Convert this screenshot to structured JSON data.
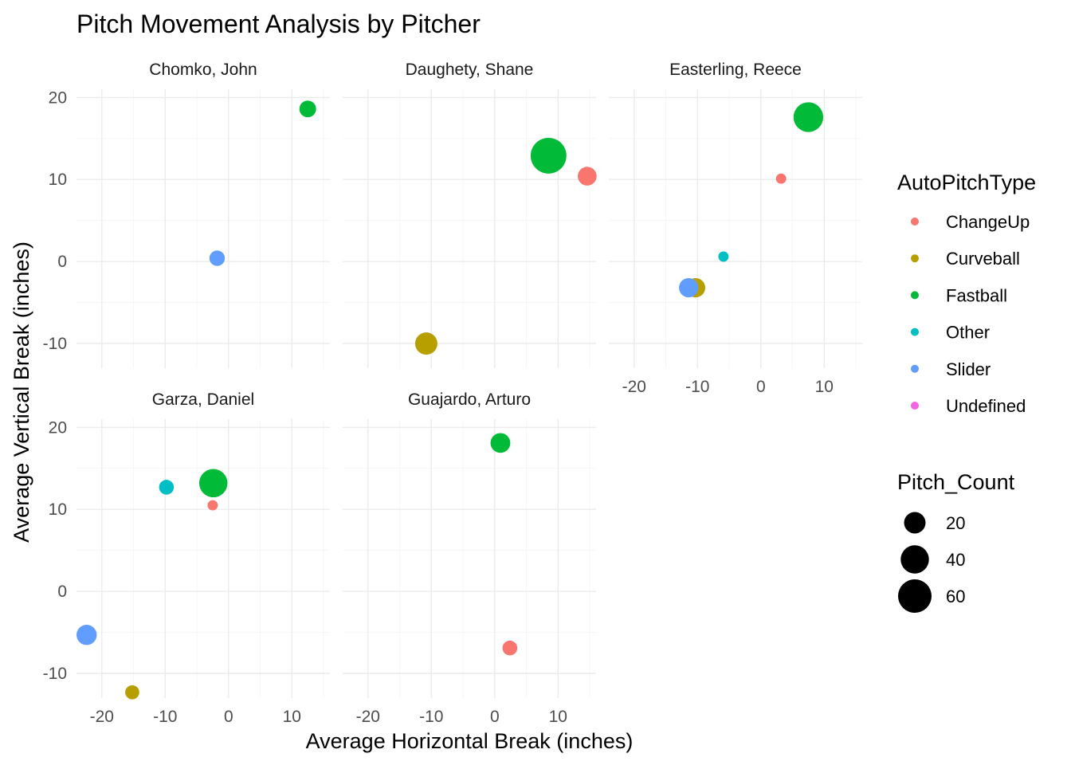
{
  "chart_data": {
    "type": "scatter",
    "title": "Pitch Movement Analysis by Pitcher",
    "xlabel": "Average Horizontal Break (inches)",
    "ylabel": "Average Vertical Break (inches)",
    "xlim": [
      -24,
      16
    ],
    "ylim": [
      -13,
      21
    ],
    "x_ticks": [
      -20,
      -10,
      0,
      10
    ],
    "y_ticks": [
      -10,
      0,
      10,
      20
    ],
    "grid": true,
    "facets": [
      {
        "name": "Chomko, John",
        "points": [
          {
            "type": "Fastball",
            "x": 12.5,
            "y": 18.6,
            "count": 10
          },
          {
            "type": "Slider",
            "x": -1.8,
            "y": 0.4,
            "count": 8
          }
        ]
      },
      {
        "name": "Daughety, Shane",
        "points": [
          {
            "type": "Fastball",
            "x": 8.5,
            "y": 12.9,
            "count": 70
          },
          {
            "type": "ChangeUp",
            "x": 14.6,
            "y": 10.4,
            "count": 14
          },
          {
            "type": "Curveball",
            "x": -10.8,
            "y": -10.0,
            "count": 22
          }
        ]
      },
      {
        "name": "Easterling, Reece",
        "points": [
          {
            "type": "Fastball",
            "x": 7.5,
            "y": 17.6,
            "count": 45
          },
          {
            "type": "ChangeUp",
            "x": 3.2,
            "y": 10.1,
            "count": 2
          },
          {
            "type": "Other",
            "x": -5.9,
            "y": 0.6,
            "count": 2
          },
          {
            "type": "Curveball",
            "x": -10.3,
            "y": -3.2,
            "count": 15
          },
          {
            "type": "Slider",
            "x": -11.4,
            "y": -3.2,
            "count": 15
          }
        ]
      },
      {
        "name": "Garza, Daniel",
        "points": [
          {
            "type": "Fastball",
            "x": -2.4,
            "y": 13.2,
            "count": 40
          },
          {
            "type": "Other",
            "x": -9.8,
            "y": 12.7,
            "count": 7
          },
          {
            "type": "ChangeUp",
            "x": -2.5,
            "y": 10.5,
            "count": 2
          },
          {
            "type": "Slider",
            "x": -22.4,
            "y": -5.3,
            "count": 17
          },
          {
            "type": "Curveball",
            "x": -15.2,
            "y": -12.3,
            "count": 6
          }
        ]
      },
      {
        "name": "Guajardo, Arturo",
        "points": [
          {
            "type": "Fastball",
            "x": 0.9,
            "y": 18.1,
            "count": 16
          },
          {
            "type": "ChangeUp",
            "x": 2.4,
            "y": -6.9,
            "count": 7
          }
        ]
      }
    ],
    "legend_color": {
      "title": "AutoPitchType",
      "items": [
        {
          "label": "ChangeUp",
          "color": "#F8766D"
        },
        {
          "label": "Curveball",
          "color": "#B79F00"
        },
        {
          "label": "Fastball",
          "color": "#00BA38"
        },
        {
          "label": "Other",
          "color": "#00BFC4"
        },
        {
          "label": "Slider",
          "color": "#619CFF"
        },
        {
          "label": "Undefined",
          "color": "#F564E3"
        }
      ]
    },
    "legend_size": {
      "title": "Pitch_Count",
      "items": [
        20,
        40,
        60
      ]
    },
    "legend_placement": "right"
  }
}
